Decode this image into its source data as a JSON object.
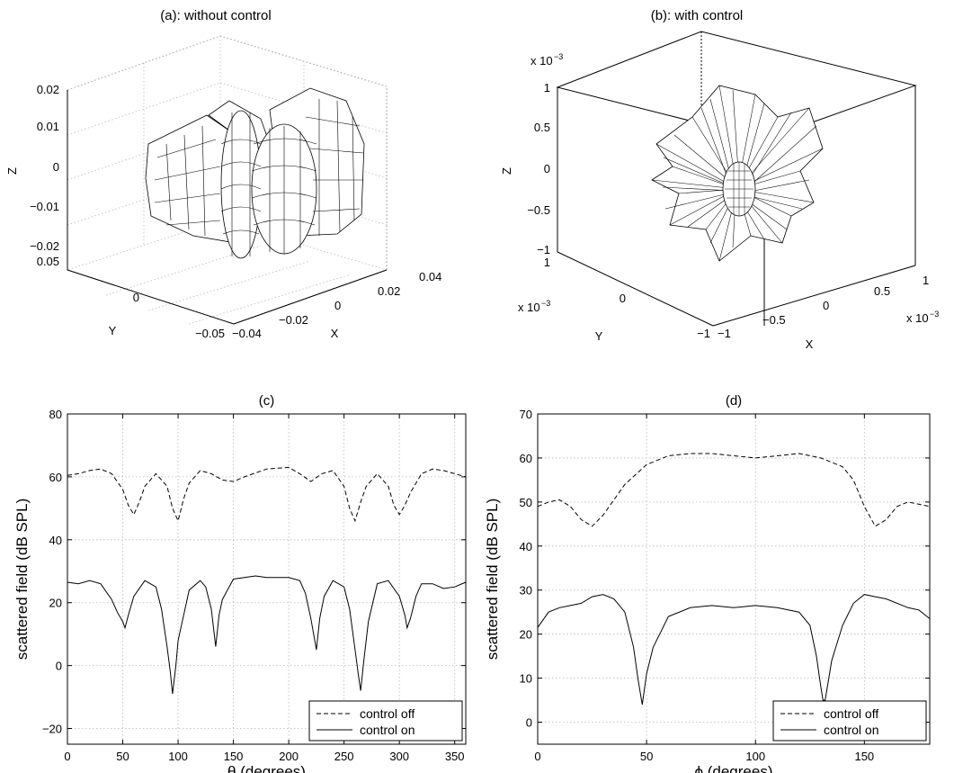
{
  "chart_data": [
    {
      "type": "surface3d",
      "title": "(a): without control",
      "xlabel": "X",
      "ylabel": "Y",
      "zlabel": "Z",
      "xticks": [
        "−0.04",
        "−0.02",
        "0",
        "0.02",
        "0.04"
      ],
      "yticks": [
        "−0.05",
        "0",
        "0.05"
      ],
      "zticks": [
        "−0.02",
        "−0.01",
        "0",
        "0.01",
        "0.02"
      ],
      "xlim": [
        -0.04,
        0.04
      ],
      "ylim": [
        -0.05,
        0.05
      ],
      "zlim": [
        -0.02,
        0.02
      ],
      "grid": true
    },
    {
      "type": "surface3d",
      "title": "(b): with control",
      "xlabel": "X",
      "ylabel": "Y",
      "zlabel": "Z",
      "xticks": [
        "−1",
        "−0.5",
        "0",
        "0.5",
        "1"
      ],
      "yticks": [
        "−1",
        "0",
        "1"
      ],
      "zticks": [
        "−1",
        "−0.5",
        "0",
        "0.5",
        "1"
      ],
      "x_multiplier": "x 10",
      "y_multiplier": "x 10",
      "z_multiplier": "x 10",
      "multiplier_exponent": "−3",
      "xlim": [
        -1,
        1
      ],
      "ylim": [
        -1,
        1
      ],
      "zlim": [
        -1,
        1
      ],
      "grid": false
    },
    {
      "type": "line",
      "title": "(c)",
      "xlabel": "θ (degrees)",
      "ylabel": "scattered field (dB SPL)",
      "xlim": [
        0,
        360
      ],
      "ylim": [
        -25,
        80
      ],
      "xticks": [
        0,
        50,
        100,
        150,
        200,
        250,
        300,
        350
      ],
      "yticks": [
        -20,
        0,
        20,
        40,
        60,
        80
      ],
      "grid": true,
      "legend": "bottom-right",
      "series": [
        {
          "name": "control off",
          "style": "dashed",
          "x": [
            0,
            10,
            20,
            30,
            40,
            50,
            55,
            60,
            65,
            70,
            80,
            90,
            95,
            100,
            105,
            110,
            120,
            130,
            140,
            150,
            160,
            180,
            200,
            210,
            220,
            230,
            240,
            250,
            255,
            260,
            265,
            270,
            280,
            290,
            295,
            300,
            305,
            310,
            320,
            330,
            340,
            350,
            360
          ],
          "y": [
            60.5,
            61,
            62,
            62.5,
            61,
            56,
            51,
            48,
            52,
            57,
            61,
            57,
            50,
            46,
            53,
            58,
            62,
            61,
            59,
            58.5,
            60,
            62.5,
            63,
            61,
            58.5,
            61,
            62,
            57,
            50,
            46,
            52,
            57,
            61,
            57,
            51,
            48,
            51,
            55,
            61,
            62.5,
            62,
            61,
            60
          ]
        },
        {
          "name": "control on",
          "style": "solid",
          "x": [
            0,
            10,
            20,
            30,
            40,
            45,
            50,
            52,
            55,
            60,
            70,
            80,
            85,
            90,
            93,
            95,
            98,
            100,
            110,
            120,
            125,
            130,
            134,
            137,
            140,
            150,
            160,
            170,
            180,
            200,
            210,
            215,
            220,
            225,
            228,
            232,
            240,
            250,
            255,
            260,
            263,
            265,
            268,
            272,
            280,
            290,
            300,
            305,
            307,
            310,
            315,
            320,
            330,
            340,
            350,
            360
          ],
          "y": [
            26.5,
            26,
            27,
            26,
            21,
            17,
            14,
            12,
            16,
            22,
            27,
            25,
            18,
            6,
            -2,
            -9,
            0,
            8,
            24,
            27,
            25,
            18,
            6,
            16,
            21,
            27.5,
            28,
            28.5,
            28,
            28,
            27,
            23,
            15,
            5,
            15,
            22,
            27,
            25,
            18,
            5,
            -3,
            -8,
            2,
            14,
            26,
            27,
            22,
            16,
            12,
            15,
            22,
            26,
            26,
            24.5,
            25,
            26.5
          ]
        }
      ],
      "legend_entries": [
        "control off",
        "control on"
      ]
    },
    {
      "type": "line",
      "title": "(d)",
      "xlabel": "ϕ (degrees)",
      "ylabel": "scattered field (dB SPL)",
      "xlim": [
        0,
        180
      ],
      "ylim": [
        -5,
        70
      ],
      "xticks": [
        0,
        50,
        100,
        150
      ],
      "yticks": [
        0,
        10,
        20,
        30,
        40,
        50,
        60,
        70
      ],
      "grid": true,
      "legend": "bottom-right",
      "series": [
        {
          "name": "control off",
          "style": "dashed",
          "x": [
            0,
            5,
            10,
            15,
            20,
            25,
            30,
            35,
            40,
            50,
            60,
            70,
            80,
            90,
            100,
            110,
            120,
            130,
            140,
            145,
            150,
            155,
            160,
            165,
            170,
            175,
            180
          ],
          "y": [
            49,
            50,
            50.5,
            49,
            46,
            44.5,
            47,
            50.5,
            54,
            58.5,
            60.5,
            61,
            61,
            60.5,
            60,
            60.5,
            61,
            60,
            58,
            55,
            49,
            44.5,
            46,
            49,
            50,
            49.5,
            49
          ]
        },
        {
          "name": "control on",
          "style": "solid",
          "x": [
            0,
            5,
            10,
            15,
            20,
            25,
            30,
            35,
            40,
            44,
            46,
            48,
            50,
            53,
            57,
            60,
            70,
            80,
            90,
            100,
            110,
            120,
            125,
            128,
            130,
            131,
            132,
            135,
            140,
            145,
            150,
            155,
            160,
            170,
            175,
            180
          ],
          "y": [
            21.5,
            25,
            26,
            26.5,
            27,
            28.5,
            29,
            28,
            25,
            17,
            10,
            4,
            11,
            17,
            21,
            24,
            26,
            26.5,
            26,
            26.5,
            26,
            25,
            22,
            15,
            8,
            5,
            5,
            14,
            22,
            27,
            29,
            28.5,
            28,
            26,
            25.5,
            23.5
          ]
        }
      ],
      "legend_entries": [
        "control off",
        "control on"
      ]
    }
  ]
}
